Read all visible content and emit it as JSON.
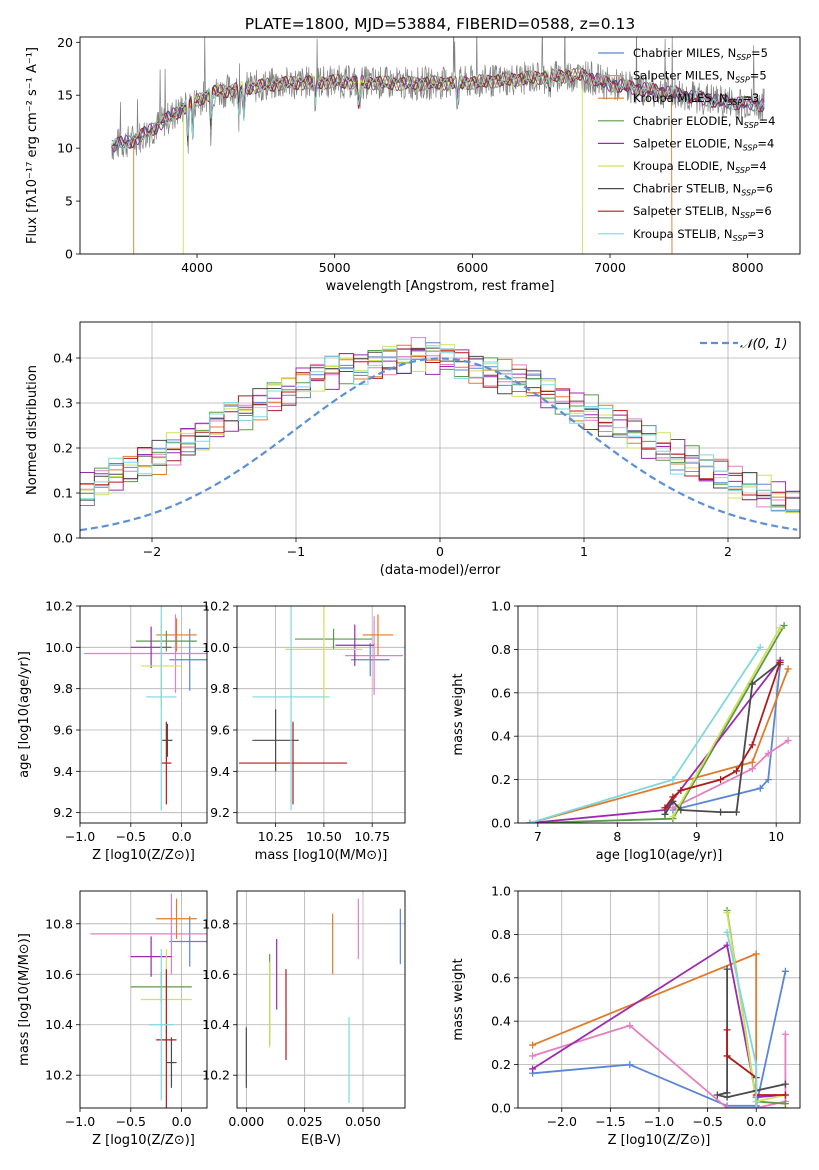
{
  "title": "PLATE=1800, MJD=53884, FIBERID=0588, z=0.13",
  "colors": {
    "Chabrier MILES": "#5b86d6",
    "Salpeter MILES": "#e47fc2",
    "Kroupa MILES": "#e07b2a",
    "Chabrier ELODIE": "#5a9a4a",
    "Salpeter ELODIE": "#9a2bb0",
    "Kroupa ELODIE": "#d2e05a",
    "Chabrier STELIB": "#4a4a4a",
    "Salpeter STELIB": "#b01c1c",
    "Kroupa STELIB": "#7fd8e0",
    "data": "#808080",
    "gaussian": "#5b8fd6"
  },
  "chart_data": [
    {
      "type": "line",
      "title": "PLATE=1800, MJD=53884, FIBERID=0588, z=0.13",
      "xlabel": "wavelength [Angstrom, rest frame]",
      "ylabel": "Flux [fλ10⁻¹⁷ erg cm⁻² s⁻¹ A⁻¹]",
      "xlim": [
        3150,
        8380
      ],
      "ylim": [
        0,
        20.5
      ],
      "xticks": [
        "4000",
        "5000",
        "6000",
        "7000",
        "8000"
      ],
      "yticks": [
        "0",
        "5",
        "10",
        "15",
        "20"
      ],
      "legend_position": "top-right",
      "legend": [
        "Chabrier MILES, N_SSP=5",
        "Salpeter MILES, N_SSP=5",
        "Kroupa MILES, N_SSP=3",
        "Chabrier ELODIE, N_SSP=4",
        "Salpeter ELODIE, N_SSP=4",
        "Kroupa ELODIE, N_SSP=4",
        "Chabrier STELIB, N_SSP=6",
        "Salpeter STELIB, N_SSP=6",
        "Kroupa STELIB, N_SSP=3"
      ],
      "continuum": {
        "wavelength": [
          3380,
          3550,
          3700,
          3900,
          4100,
          4300,
          4600,
          5000,
          5500,
          6000,
          6500,
          6800,
          7000,
          7400,
          7800,
          8100
        ],
        "flux": [
          10.2,
          10.8,
          12.0,
          13.8,
          15.2,
          15.6,
          16.1,
          16.3,
          16.1,
          16.2,
          16.7,
          16.9,
          16.0,
          15.3,
          14.4,
          14.1
        ]
      },
      "model_cutoffs": {
        "Kroupa MILES": [
          3540,
          7450
        ],
        "Kroupa ELODIE": [
          3900,
          6800
        ]
      }
    },
    {
      "type": "bar",
      "subtype": "step-histogram",
      "xlabel": "(data-model)/error",
      "ylabel": "Normed distribution",
      "xlim": [
        -2.5,
        2.5
      ],
      "ylim": [
        0,
        0.48
      ],
      "xticks": [
        "−2",
        "−1",
        "0",
        "1",
        "2"
      ],
      "yticks": [
        "0.0",
        "0.1",
        "0.2",
        "0.3",
        "0.4"
      ],
      "grid": true,
      "legend_position": "top-right",
      "legend": [
        "𝒩(0, 1)"
      ],
      "bin_width": 0.1,
      "base_histogram": [
        0.03,
        0.035,
        0.04,
        0.05,
        0.06,
        0.065,
        0.07,
        0.085,
        0.09,
        0.1,
        0.11,
        0.13,
        0.14,
        0.15,
        0.17,
        0.18,
        0.2,
        0.22,
        0.23,
        0.25,
        0.27,
        0.28,
        0.3,
        0.32,
        0.33,
        0.35,
        0.36,
        0.37,
        0.38,
        0.38,
        0.39,
        0.4,
        0.4,
        0.41,
        0.4,
        0.4,
        0.39,
        0.38,
        0.37,
        0.36,
        0.35,
        0.34,
        0.32,
        0.31,
        0.29,
        0.28,
        0.26,
        0.25,
        0.23,
        0.21,
        0.2,
        0.18,
        0.17,
        0.15,
        0.14,
        0.12,
        0.11,
        0.1,
        0.09,
        0.08,
        0.07,
        0.06,
        0.055,
        0.05,
        0.045,
        0.04,
        0.035,
        0.032,
        0.03,
        0.028
      ]
    },
    {
      "type": "scatter",
      "subtype": "errorbar",
      "xlabel": "Z [log10(Z/Z⊙)]",
      "ylabel": "age  [log10(age/yr)]",
      "xlim": [
        -1.0,
        0.25
      ],
      "ylim": [
        9.15,
        10.2
      ],
      "xticks": [
        "−1.0",
        "−0.5",
        "0.0"
      ],
      "yticks": [
        "9.2",
        "9.4",
        "9.6",
        "9.8",
        "10.0",
        "10.2"
      ],
      "grid": true,
      "points": [
        {
          "model": "Chabrier MILES",
          "x": 0.08,
          "y": 9.94,
          "xerr": 0.2,
          "yerr": 0.15
        },
        {
          "model": "Salpeter MILES",
          "x": -0.06,
          "y": 9.97,
          "xerr": 0.9,
          "yerr": 0.19
        },
        {
          "model": "Kroupa MILES",
          "x": -0.05,
          "y": 10.06,
          "xerr": 0.2,
          "yerr": 0.08
        },
        {
          "model": "Chabrier ELODIE",
          "x": -0.15,
          "y": 10.03,
          "xerr": 0.3,
          "yerr": 0.05
        },
        {
          "model": "Salpeter ELODIE",
          "x": -0.3,
          "y": 10.0,
          "xerr": 0.2,
          "yerr": 0.1
        },
        {
          "model": "Kroupa ELODIE",
          "x": -0.2,
          "y": 9.91,
          "xerr": 0.2,
          "yerr": 0.2
        },
        {
          "model": "Chabrier STELIB",
          "x": -0.14,
          "y": 9.55,
          "xerr": 0.05,
          "yerr": 0.08
        },
        {
          "model": "Salpeter STELIB",
          "x": -0.15,
          "y": 9.44,
          "xerr": 0.05,
          "yerr": 0.2
        },
        {
          "model": "Kroupa STELIB",
          "x": -0.2,
          "y": 9.76,
          "xerr": 0.15,
          "yerr": 0.55
        }
      ]
    },
    {
      "type": "scatter",
      "subtype": "errorbar",
      "xlabel": "mass [log10(M/M⊙)]",
      "ylabel": "",
      "xlim": [
        10.05,
        10.92
      ],
      "ylim": [
        9.15,
        10.2
      ],
      "xticks": [
        "10.25",
        "10.50",
        "10.75"
      ],
      "yticks": [
        "9.2",
        "9.4",
        "9.6",
        "9.8",
        "10.0",
        "10.2"
      ],
      "grid": true,
      "points": [
        {
          "model": "Chabrier MILES",
          "x": 10.74,
          "y": 9.94,
          "xerr": 0.1,
          "yerr": 0.08
        },
        {
          "model": "Salpeter MILES",
          "x": 10.76,
          "y": 9.96,
          "xerr": 0.15,
          "yerr": 0.19
        },
        {
          "model": "Kroupa MILES",
          "x": 10.78,
          "y": 10.06,
          "xerr": 0.08,
          "yerr": 0.1
        },
        {
          "model": "Chabrier ELODIE",
          "x": 10.55,
          "y": 10.04,
          "xerr": 0.2,
          "yerr": 0.05
        },
        {
          "model": "Salpeter ELODIE",
          "x": 10.66,
          "y": 10.01,
          "xerr": 0.1,
          "yerr": 0.1
        },
        {
          "model": "Kroupa ELODIE",
          "x": 10.5,
          "y": 9.99,
          "xerr": 0.2,
          "yerr": 0.25
        },
        {
          "model": "Chabrier STELIB",
          "x": 10.25,
          "y": 9.55,
          "xerr": 0.12,
          "yerr": 0.15
        },
        {
          "model": "Salpeter STELIB",
          "x": 10.34,
          "y": 9.44,
          "xerr": 0.28,
          "yerr": 0.2
        },
        {
          "model": "Kroupa STELIB",
          "x": 10.33,
          "y": 9.76,
          "xerr": 0.2,
          "yerr": 0.55
        }
      ]
    },
    {
      "type": "line",
      "xlabel": "age  [log10(age/yr)]",
      "ylabel": "mass weight",
      "xlim": [
        6.75,
        10.3
      ],
      "ylim": [
        0,
        1.0
      ],
      "xticks": [
        "7",
        "8",
        "9",
        "10"
      ],
      "yticks": [
        "0.0",
        "0.2",
        "0.4",
        "0.6",
        "0.8",
        "1.0"
      ],
      "grid": true,
      "series": [
        {
          "model": "Chabrier MILES",
          "x": [
            8.7,
            9.8,
            9.9,
            10.05
          ],
          "y": [
            0.06,
            0.16,
            0.2,
            0.73
          ]
        },
        {
          "model": "Salpeter MILES",
          "x": [
            8.7,
            9.7,
            9.9,
            10.15
          ],
          "y": [
            0.07,
            0.25,
            0.32,
            0.38
          ]
        },
        {
          "model": "Kroupa MILES",
          "x": [
            6.9,
            9.7,
            10.15
          ],
          "y": [
            0.0,
            0.28,
            0.71
          ]
        },
        {
          "model": "Chabrier ELODIE",
          "x": [
            6.9,
            8.7,
            10.1
          ],
          "y": [
            0.0,
            0.02,
            0.91
          ]
        },
        {
          "model": "Salpeter ELODIE",
          "x": [
            6.9,
            8.6,
            10.05
          ],
          "y": [
            0.0,
            0.06,
            0.75
          ]
        },
        {
          "model": "Kroupa ELODIE",
          "x": [
            8.7,
            10.05
          ],
          "y": [
            0.03,
            0.9
          ]
        },
        {
          "model": "Chabrier STELIB",
          "x": [
            8.6,
            8.7,
            8.8,
            9.3,
            9.5,
            9.7,
            10.05
          ],
          "y": [
            0.04,
            0.1,
            0.06,
            0.05,
            0.05,
            0.64,
            0.74
          ]
        },
        {
          "model": "Salpeter STELIB",
          "x": [
            8.6,
            8.7,
            8.8,
            9.3,
            9.5,
            9.7,
            10.05
          ],
          "y": [
            0.07,
            0.12,
            0.15,
            0.2,
            0.24,
            0.36,
            0.74
          ]
        },
        {
          "model": "Kroupa STELIB",
          "x": [
            6.9,
            8.7,
            9.8
          ],
          "y": [
            0.0,
            0.2,
            0.81
          ]
        }
      ]
    },
    {
      "type": "scatter",
      "subtype": "errorbar",
      "xlabel": "Z [log10(Z/Z⊙)]",
      "ylabel": "mass [log10(M/M⊙)]",
      "xlim": [
        -1.0,
        0.25
      ],
      "ylim": [
        10.07,
        10.93
      ],
      "xticks": [
        "−1.0",
        "−0.5",
        "0.0"
      ],
      "yticks": [
        "10.2",
        "10.4",
        "10.6",
        "10.8"
      ],
      "grid": true,
      "points": [
        {
          "model": "Chabrier MILES",
          "x": 0.08,
          "y": 10.73,
          "xerr": 0.2,
          "yerr": 0.1
        },
        {
          "model": "Salpeter MILES",
          "x": -0.1,
          "y": 10.76,
          "xerr": 0.8,
          "yerr": 0.16
        },
        {
          "model": "Kroupa MILES",
          "x": -0.05,
          "y": 10.82,
          "xerr": 0.2,
          "yerr": 0.08
        },
        {
          "model": "Chabrier ELODIE",
          "x": -0.2,
          "y": 10.55,
          "xerr": 0.3,
          "yerr": 0.06
        },
        {
          "model": "Salpeter ELODIE",
          "x": -0.3,
          "y": 10.67,
          "xerr": 0.2,
          "yerr": 0.08
        },
        {
          "model": "Kroupa ELODIE",
          "x": -0.15,
          "y": 10.5,
          "xerr": 0.25,
          "yerr": 0.2
        },
        {
          "model": "Chabrier STELIB",
          "x": -0.1,
          "y": 10.25,
          "xerr": 0.05,
          "yerr": 0.1
        },
        {
          "model": "Salpeter STELIB",
          "x": -0.15,
          "y": 10.34,
          "xerr": 0.1,
          "yerr": 0.28
        },
        {
          "model": "Kroupa STELIB",
          "x": -0.2,
          "y": 10.4,
          "xerr": 0.12,
          "yerr": 0.3
        }
      ]
    },
    {
      "type": "scatter",
      "subtype": "errorbar",
      "xlabel": "E(B-V)",
      "ylabel": "",
      "xlim": [
        -0.004,
        0.068
      ],
      "ylim": [
        10.07,
        10.93
      ],
      "xticks": [
        "0.000",
        "0.025",
        "0.050"
      ],
      "yticks": [
        "10.2",
        "10.4",
        "10.6",
        "10.8"
      ],
      "grid": true,
      "points": [
        {
          "model": "Chabrier MILES",
          "x": 0.066,
          "y": 10.75,
          "xerr": 0,
          "yerr": 0.11
        },
        {
          "model": "Salpeter MILES",
          "x": 0.048,
          "y": 10.78,
          "xerr": 0,
          "yerr": 0.12
        },
        {
          "model": "Kroupa MILES",
          "x": 0.037,
          "y": 10.72,
          "xerr": 0,
          "yerr": 0.12
        },
        {
          "model": "Chabrier ELODIE",
          "x": 0.01,
          "y": 10.5,
          "xerr": 0,
          "yerr": 0.18
        },
        {
          "model": "Salpeter ELODIE",
          "x": 0.013,
          "y": 10.6,
          "xerr": 0,
          "yerr": 0.14
        },
        {
          "model": "Kroupa ELODIE",
          "x": 0.01,
          "y": 10.48,
          "xerr": 0,
          "yerr": 0.17
        },
        {
          "model": "Chabrier STELIB",
          "x": 0.0,
          "y": 10.27,
          "xerr": 0,
          "yerr": 0.12
        },
        {
          "model": "Salpeter STELIB",
          "x": 0.017,
          "y": 10.44,
          "xerr": 0,
          "yerr": 0.18
        },
        {
          "model": "Kroupa STELIB",
          "x": 0.044,
          "y": 10.26,
          "xerr": 0,
          "yerr": 0.17
        }
      ]
    },
    {
      "type": "line",
      "xlabel": "Z [log10(Z/Z⊙)]",
      "ylabel": "mass weight",
      "xlim": [
        -2.45,
        0.45
      ],
      "ylim": [
        0,
        1.0
      ],
      "xticks": [
        "−2.0",
        "−1.5",
        "−1.0",
        "−0.5",
        "0.0"
      ],
      "yticks": [
        "0.0",
        "0.2",
        "0.4",
        "0.6",
        "0.8",
        "1.0"
      ],
      "grid": true,
      "series": [
        {
          "model": "Chabrier MILES",
          "x": [
            -2.3,
            -1.3,
            -0.3,
            0.0,
            0.3
          ],
          "y": [
            0.16,
            0.2,
            0.01,
            0.01,
            0.63
          ]
        },
        {
          "model": "Salpeter MILES",
          "x": [
            -2.3,
            -1.3,
            -0.3,
            0.0,
            0.3,
            0.3
          ],
          "y": [
            0.24,
            0.38,
            0.0,
            0.0,
            0.03,
            0.34
          ]
        },
        {
          "model": "Kroupa MILES",
          "x": [
            -2.3,
            0.0,
            0.0,
            0.3
          ],
          "y": [
            0.29,
            0.71,
            0.0,
            0.0
          ]
        },
        {
          "model": "Chabrier ELODIE",
          "x": [
            -0.3,
            0.0,
            0.3
          ],
          "y": [
            0.91,
            0.03,
            0.02
          ]
        },
        {
          "model": "Salpeter ELODIE",
          "x": [
            -2.3,
            -0.3,
            0.0,
            0.3
          ],
          "y": [
            0.18,
            0.75,
            0.05,
            0.06
          ]
        },
        {
          "model": "Kroupa ELODIE",
          "x": [
            -0.3,
            0.0,
            0.3
          ],
          "y": [
            0.9,
            0.03,
            0.06
          ]
        },
        {
          "model": "Chabrier STELIB",
          "x": [
            -0.3,
            -0.3,
            -0.4,
            -0.3,
            0.0,
            0.3
          ],
          "y": [
            0.64,
            0.07,
            0.06,
            0.05,
            0.08,
            0.11
          ]
        },
        {
          "model": "Salpeter STELIB",
          "x": [
            -0.3,
            -0.3,
            0.0,
            0.0,
            0.3
          ],
          "y": [
            0.36,
            0.24,
            0.14,
            0.06,
            0.06
          ]
        },
        {
          "model": "Kroupa STELIB",
          "x": [
            -0.3,
            0.0,
            0.0
          ],
          "y": [
            0.81,
            0.2,
            0.0
          ]
        }
      ]
    }
  ]
}
